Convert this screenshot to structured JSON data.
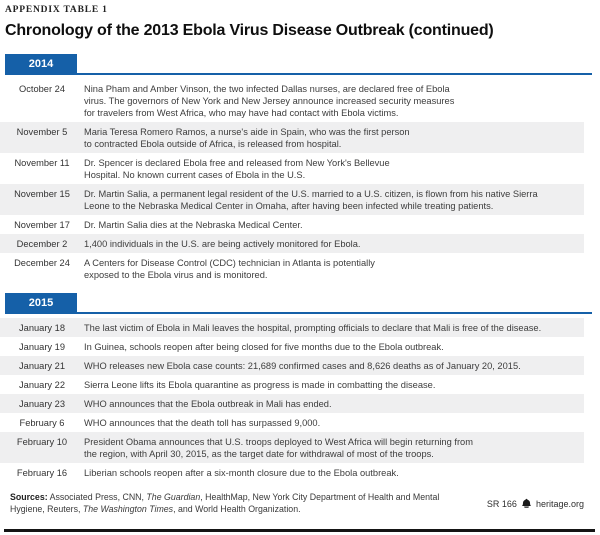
{
  "page": {
    "eyebrow": "APPENDIX TABLE 1",
    "title": "Chronology of the 2013 Ebola Virus Disease Outbreak (continued)"
  },
  "colors": {
    "accent_blue": "#1560a8",
    "row_shade": "#efeff0"
  },
  "table": {
    "sections": [
      {
        "year": "2014",
        "rows": [
          {
            "date": "October 24",
            "event": "Nina Pham and Amber Vinson, the two infected Dallas nurses, are declared free of Ebola\nvirus. The governors of New York and New Jersey announce increased security measures\nfor travelers from West Africa, who may have had contact with Ebola victims."
          },
          {
            "date": "November 5",
            "event": "Maria Teresa Romero Ramos, a nurse's aide in Spain, who was the first person\nto contracted Ebola outside of Africa, is released from hospital."
          },
          {
            "date": "November 11",
            "event": "Dr. Spencer is declared Ebola free and released from New York's Bellevue\nHospital. No known current cases of Ebola in the U.S."
          },
          {
            "date": "November 15",
            "event": "Dr. Martin Salia, a permanent legal resident of the U.S. married to a U.S. citizen, is flown from his native Sierra\nLeone to the Nebraska Medical Center in Omaha, after having been infected while treating patients."
          },
          {
            "date": "November 17",
            "event": "Dr. Martin Salia dies at the Nebraska Medical Center."
          },
          {
            "date": "December 2",
            "event": "1,400 individuals in the U.S. are being actively monitored for Ebola."
          },
          {
            "date": "December 24",
            "event": "A Centers for Disease Control (CDC) technician in Atlanta is potentially\nexposed to the Ebola virus and is monitored."
          }
        ]
      },
      {
        "year": "2015",
        "rows": [
          {
            "date": "January 18",
            "event": "The last victim of Ebola in Mali leaves the hospital, prompting officials to declare that Mali is free of the disease."
          },
          {
            "date": "January 19",
            "event": "In Guinea, schools reopen after being closed for five months due to the Ebola outbreak."
          },
          {
            "date": "January 21",
            "event": "WHO releases new Ebola case counts: 21,689 confirmed cases and 8,626 deaths as of January 20, 2015."
          },
          {
            "date": "January 22",
            "event": "Sierra Leone lifts its Ebola quarantine as progress is made in combatting the disease."
          },
          {
            "date": "January 23",
            "event": "WHO announces that the Ebola outbreak in Mali has ended."
          },
          {
            "date": "February 6",
            "event": "WHO announces that the death toll has surpassed 9,000."
          },
          {
            "date": "February 10",
            "event": "President Obama announces that U.S. troops deployed to West Africa will begin returning from\nthe region, with April 30, 2015, as the target date for withdrawal of most of the troops."
          },
          {
            "date": "February 16",
            "event": "Liberian schools reopen after a six-month closure due to the Ebola outbreak."
          }
        ]
      }
    ]
  },
  "footer": {
    "sources_label": "Sources:",
    "sources_parts": [
      {
        "text": " Associated Press, CNN, ",
        "italic": false
      },
      {
        "text": "The Guardian",
        "italic": true
      },
      {
        "text": ", HealthMap, New York City Department of Health and Mental Hygiene, Reuters, ",
        "italic": false
      },
      {
        "text": "The Washington Times",
        "italic": true
      },
      {
        "text": ", and World Health Organization.",
        "italic": false
      }
    ],
    "report_id": "SR 166",
    "site": "heritage.org",
    "logo_icon": "liberty-bell-icon"
  }
}
